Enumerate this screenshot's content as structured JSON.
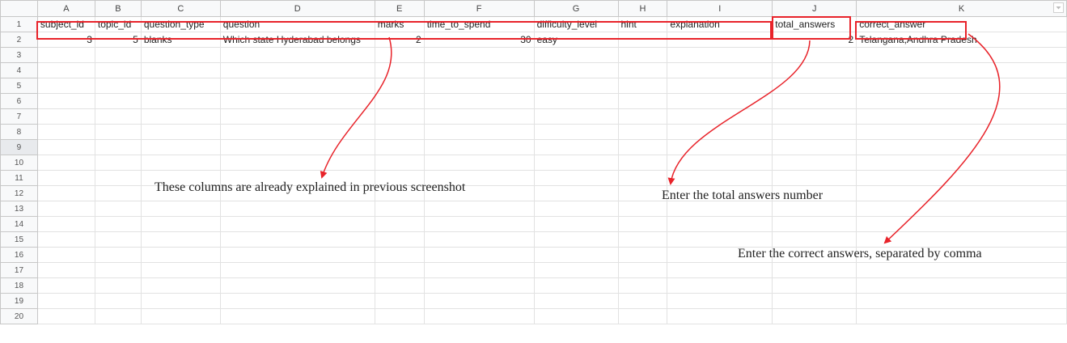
{
  "columns": [
    "A",
    "B",
    "C",
    "D",
    "E",
    "F",
    "G",
    "H",
    "I",
    "J",
    "K"
  ],
  "rows": [
    "1",
    "2",
    "3",
    "4",
    "5",
    "6",
    "7",
    "8",
    "9",
    "10",
    "11",
    "12",
    "13",
    "14",
    "15",
    "16",
    "17",
    "18",
    "19",
    "20"
  ],
  "header_row": [
    "subject_id",
    "topic_id",
    "question_type",
    "question",
    "marks",
    "time_to_spend",
    "difficulty_level",
    "hint",
    "explanation",
    "total_answers",
    "correct_answer"
  ],
  "data_row": [
    "3",
    "5",
    "blanks",
    "Which state Hyderabad belongs",
    "2",
    "30",
    "easy",
    "",
    "",
    "2",
    "Telangana,Andhra Pradesh"
  ],
  "annotations": {
    "columns_explained": "These columns are already explained in previous screenshot",
    "total_answers": "Enter the total answers number",
    "correct_answers": "Enter the correct answers,  separated by comma"
  },
  "colors": {
    "highlight": "#e8232a",
    "selected_row_header": "#e8eaed"
  },
  "icons": {
    "filter": "dropdown-filter-icon"
  }
}
